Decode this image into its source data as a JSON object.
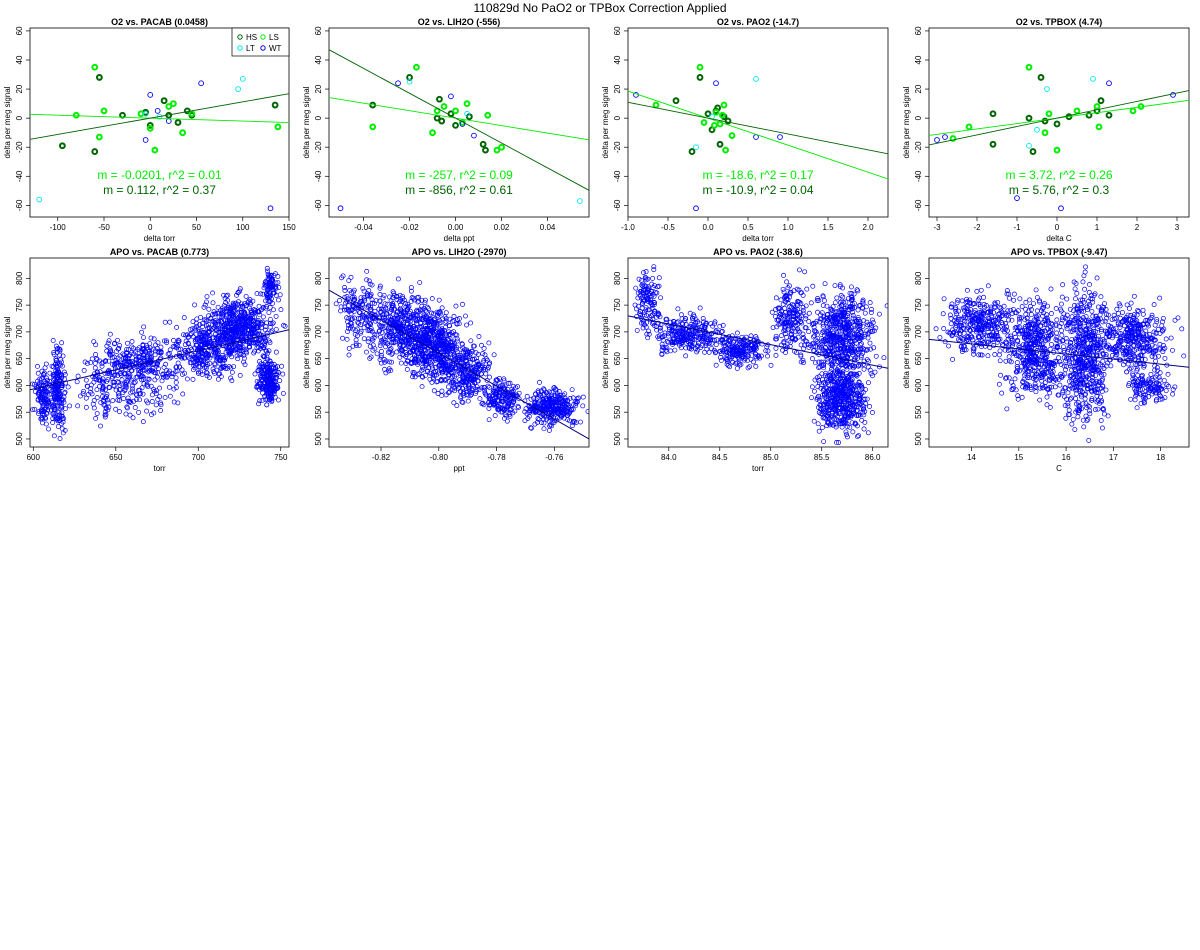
{
  "page_title": "110829d   No PaO2 or TPBox Correction Applied",
  "colors": {
    "HS": "#006400",
    "LS": "#00ee00",
    "LT": "#00e5ee",
    "WT": "#0000ff",
    "apo": "#0000ff",
    "axis": "#000000"
  },
  "chart_data": [
    {
      "type": "scatter",
      "title": "O2 vs. PACAB (0.0458)",
      "xlabel": "delta torr",
      "ylabel": "delta per meg signal",
      "xlim": [
        -130,
        150
      ],
      "ylim": [
        -68,
        62
      ],
      "xticks": [
        -100,
        -50,
        0,
        50,
        100,
        150
      ],
      "yticks": [
        -60,
        -40,
        -20,
        0,
        20,
        40,
        60
      ],
      "legend": {
        "position": "top-right",
        "entries": [
          "HS",
          "LS",
          "LT",
          "WT"
        ],
        "labels": [
          "HS",
          "LS",
          "LT",
          "WT"
        ]
      },
      "series": [
        {
          "name": "HS",
          "points": [
            [
              -95,
              -19
            ],
            [
              -60,
              -23
            ],
            [
              -55,
              28
            ],
            [
              -30,
              2
            ],
            [
              -5,
              4
            ],
            [
              0,
              -5
            ],
            [
              15,
              12
            ],
            [
              20,
              2
            ],
            [
              30,
              -3
            ],
            [
              40,
              5
            ],
            [
              45,
              2
            ],
            [
              135,
              9
            ]
          ]
        },
        {
          "name": "LS",
          "points": [
            [
              -80,
              2
            ],
            [
              -60,
              35
            ],
            [
              -55,
              -13
            ],
            [
              -50,
              5
            ],
            [
              -10,
              3
            ],
            [
              0,
              -7
            ],
            [
              5,
              -22
            ],
            [
              20,
              8
            ],
            [
              25,
              10
            ],
            [
              35,
              -10
            ],
            [
              45,
              3
            ],
            [
              138,
              -6
            ]
          ]
        },
        {
          "name": "LT",
          "points": [
            [
              -120,
              -56
            ],
            [
              95,
              20
            ],
            [
              100,
              27
            ],
            [
              -5,
              3
            ],
            [
              10,
              1
            ]
          ]
        },
        {
          "name": "WT",
          "points": [
            [
              0,
              16
            ],
            [
              -5,
              -15
            ],
            [
              55,
              24
            ],
            [
              130,
              -62
            ],
            [
              20,
              -2
            ],
            [
              8,
              5
            ]
          ]
        }
      ],
      "fits": [
        {
          "color": "LS",
          "m": -0.0201,
          "b": 0,
          "label": "m = -0.0201, r^2 = 0.01"
        },
        {
          "color": "HS",
          "m": 0.112,
          "b": 0,
          "label": "m = 0.112, r^2 = 0.37"
        }
      ]
    },
    {
      "type": "scatter",
      "title": "O2 vs. LIH2O (-556)",
      "xlabel": "delta ppt",
      "ylabel": "delta per meg signal",
      "xlim": [
        -0.055,
        0.058
      ],
      "ylim": [
        -68,
        62
      ],
      "xticks": [
        -0.04,
        -0.02,
        0.0,
        0.02,
        0.04
      ],
      "xtick_labels": [
        "-0.04",
        "-0.02",
        "0.00",
        "0.02",
        "0.04"
      ],
      "yticks": [
        -60,
        -40,
        -20,
        0,
        20,
        40,
        60
      ],
      "series": [
        {
          "name": "HS",
          "points": [
            [
              -0.036,
              9
            ],
            [
              -0.02,
              28
            ],
            [
              -0.007,
              13
            ],
            [
              -0.008,
              0
            ],
            [
              -0.002,
              3
            ],
            [
              0.0,
              -5
            ],
            [
              0.006,
              1
            ],
            [
              0.012,
              -18
            ],
            [
              0.013,
              -22
            ],
            [
              -0.006,
              -2
            ]
          ]
        },
        {
          "name": "LS",
          "points": [
            [
              -0.036,
              -6
            ],
            [
              -0.017,
              35
            ],
            [
              -0.01,
              -10
            ],
            [
              -0.008,
              5
            ],
            [
              -0.005,
              8
            ],
            [
              0.003,
              -3
            ],
            [
              0.005,
              10
            ],
            [
              0.014,
              2
            ],
            [
              0.018,
              -22
            ],
            [
              0.02,
              -20
            ],
            [
              0.0,
              5
            ]
          ]
        },
        {
          "name": "LT",
          "points": [
            [
              0.054,
              -57
            ],
            [
              -0.02,
              25
            ],
            [
              0.005,
              3
            ]
          ]
        },
        {
          "name": "WT",
          "points": [
            [
              -0.05,
              -62
            ],
            [
              -0.025,
              24
            ],
            [
              -0.002,
              15
            ],
            [
              0.008,
              -12
            ],
            [
              0.003,
              -4
            ]
          ]
        }
      ],
      "fits": [
        {
          "color": "LS",
          "m": -257,
          "b": 0,
          "label": "m = -257, r^2 = 0.09"
        },
        {
          "color": "HS",
          "m": -856,
          "b": 0,
          "label": "m = -856, r^2 = 0.61"
        }
      ]
    },
    {
      "type": "scatter",
      "title": "O2 vs. PAO2 (-14.7)",
      "xlabel": "delta torr",
      "ylabel": "delta per meg signal",
      "xlim": [
        -1.0,
        2.25
      ],
      "ylim": [
        -68,
        62
      ],
      "xticks": [
        -1.0,
        -0.5,
        0.0,
        0.5,
        1.0,
        1.5,
        2.0
      ],
      "xtick_labels": [
        "-1.0",
        "-0.5",
        "0.0",
        "0.5",
        "1.0",
        "1.5",
        "2.0"
      ],
      "yticks": [
        -60,
        -40,
        -20,
        0,
        20,
        40,
        60
      ],
      "series": [
        {
          "name": "HS",
          "points": [
            [
              -0.4,
              12
            ],
            [
              -0.2,
              -23
            ],
            [
              -0.1,
              28
            ],
            [
              0.0,
              3
            ],
            [
              0.1,
              5
            ],
            [
              0.15,
              -18
            ],
            [
              0.2,
              1
            ],
            [
              0.25,
              -2
            ],
            [
              0.05,
              -8
            ],
            [
              0.12,
              7
            ]
          ]
        },
        {
          "name": "LS",
          "points": [
            [
              -0.65,
              9
            ],
            [
              -0.1,
              35
            ],
            [
              -0.05,
              -3
            ],
            [
              0.08,
              -5
            ],
            [
              0.1,
              4
            ],
            [
              0.2,
              9
            ],
            [
              0.22,
              -22
            ],
            [
              0.3,
              -12
            ],
            [
              0.15,
              -4
            ],
            [
              0.18,
              2
            ]
          ]
        },
        {
          "name": "LT",
          "points": [
            [
              0.6,
              27
            ],
            [
              -0.15,
              -20
            ],
            [
              0.05,
              1
            ]
          ]
        },
        {
          "name": "WT",
          "points": [
            [
              -0.9,
              16
            ],
            [
              -0.15,
              -62
            ],
            [
              0.6,
              -13
            ],
            [
              0.9,
              -13
            ],
            [
              0.1,
              24
            ]
          ]
        }
      ],
      "fits": [
        {
          "color": "LS",
          "m": -18.6,
          "b": 0,
          "label": "m = -18.6, r^2 = 0.17"
        },
        {
          "color": "HS",
          "m": -10.9,
          "b": 0,
          "label": "m = -10.9, r^2 = 0.04"
        }
      ]
    },
    {
      "type": "scatter",
      "title": "O2 vs. TPBOX (4.74)",
      "xlabel": "delta C",
      "ylabel": "delta per meg signal",
      "xlim": [
        -3.2,
        3.3
      ],
      "ylim": [
        -68,
        62
      ],
      "xticks": [
        -3,
        -2,
        -1,
        0,
        1,
        2,
        3
      ],
      "yticks": [
        -60,
        -40,
        -20,
        0,
        20,
        40,
        60
      ],
      "series": [
        {
          "name": "HS",
          "points": [
            [
              -1.6,
              3
            ],
            [
              -1.6,
              -18
            ],
            [
              -0.6,
              -23
            ],
            [
              -0.4,
              28
            ],
            [
              -0.3,
              -2
            ],
            [
              0.0,
              -4
            ],
            [
              0.3,
              1
            ],
            [
              0.8,
              2
            ],
            [
              1.0,
              5
            ],
            [
              1.1,
              12
            ],
            [
              1.3,
              2
            ],
            [
              -0.7,
              0
            ]
          ]
        },
        {
          "name": "LS",
          "points": [
            [
              -2.6,
              -14
            ],
            [
              -2.2,
              -6
            ],
            [
              -0.7,
              35
            ],
            [
              -0.3,
              -10
            ],
            [
              0.0,
              -22
            ],
            [
              0.5,
              5
            ],
            [
              1.0,
              8
            ],
            [
              1.05,
              -6
            ],
            [
              1.9,
              5
            ],
            [
              2.1,
              8
            ],
            [
              -0.2,
              3
            ]
          ]
        },
        {
          "name": "LT",
          "points": [
            [
              -0.25,
              20
            ],
            [
              0.9,
              27
            ],
            [
              -0.7,
              -19
            ],
            [
              -0.5,
              -8
            ]
          ]
        },
        {
          "name": "WT",
          "points": [
            [
              -3.0,
              -15
            ],
            [
              -2.8,
              -13
            ],
            [
              -1.0,
              -55
            ],
            [
              0.1,
              -62
            ],
            [
              1.3,
              24
            ],
            [
              2.9,
              16
            ]
          ]
        }
      ],
      "fits": [
        {
          "color": "LS",
          "m": 3.72,
          "b": 0,
          "label": "m = 3.72, r^2 = 0.26"
        },
        {
          "color": "HS",
          "m": 5.76,
          "b": 0,
          "label": "m = 5.76, r^2 = 0.3"
        }
      ]
    },
    {
      "type": "scatter",
      "title": "APO vs. PACAB (0.773)",
      "xlabel": "torr",
      "ylabel": "delta per meg signal",
      "xlim": [
        598,
        755
      ],
      "ylim": [
        485,
        838
      ],
      "xticks": [
        600,
        650,
        700,
        750
      ],
      "yticks": [
        500,
        550,
        600,
        650,
        700,
        750,
        800
      ],
      "clusters": [
        {
          "x": [
            600,
            612
          ],
          "y": [
            520,
            640
          ],
          "n": 120
        },
        {
          "x": [
            610,
            620
          ],
          "y": [
            500,
            680
          ],
          "n": 180
        },
        {
          "x": [
            620,
            690
          ],
          "y": [
            520,
            680
          ],
          "n": 260
        },
        {
          "x": [
            630,
            700
          ],
          "y": [
            600,
            700
          ],
          "n": 200
        },
        {
          "x": [
            680,
            730
          ],
          "y": [
            600,
            740
          ],
          "n": 320
        },
        {
          "x": [
            700,
            750
          ],
          "y": [
            640,
            780
          ],
          "n": 520
        },
        {
          "x": [
            735,
            750
          ],
          "y": [
            560,
            660
          ],
          "n": 220
        },
        {
          "x": [
            738,
            750
          ],
          "y": [
            740,
            830
          ],
          "n": 80
        }
      ],
      "fit": {
        "x1": 598,
        "y1": 592,
        "x2": 755,
        "y2": 704
      }
    },
    {
      "type": "scatter",
      "title": "APO vs. LIH2O (-2970)",
      "xlabel": "ppt",
      "ylabel": "delta per meg signal",
      "xlim": [
        -0.838,
        -0.748
      ],
      "ylim": [
        485,
        838
      ],
      "xticks": [
        -0.82,
        -0.8,
        -0.78,
        -0.76
      ],
      "xtick_labels": [
        "-0.82",
        "-0.80",
        "-0.78",
        "-0.76"
      ],
      "yticks": [
        500,
        550,
        600,
        650,
        700,
        750,
        800
      ],
      "clusters": [
        {
          "x": [
            -0.836,
            -0.818
          ],
          "y": [
            660,
            820
          ],
          "n": 160
        },
        {
          "x": [
            -0.825,
            -0.8
          ],
          "y": [
            620,
            790
          ],
          "n": 420
        },
        {
          "x": [
            -0.812,
            -0.79
          ],
          "y": [
            590,
            760
          ],
          "n": 460
        },
        {
          "x": [
            -0.8,
            -0.78
          ],
          "y": [
            560,
            690
          ],
          "n": 260
        },
        {
          "x": [
            -0.785,
            -0.77
          ],
          "y": [
            530,
            620
          ],
          "n": 160
        },
        {
          "x": [
            -0.772,
            -0.75
          ],
          "y": [
            520,
            600
          ],
          "n": 300
        }
      ],
      "fit": {
        "x1": -0.838,
        "y1": 778,
        "x2": -0.748,
        "y2": 500
      }
    },
    {
      "type": "scatter",
      "title": "APO vs. PAO2 (-38.6)",
      "xlabel": "torr",
      "ylabel": "delta per meg signal",
      "xlim": [
        83.6,
        86.15
      ],
      "ylim": [
        485,
        838
      ],
      "xticks": [
        84.0,
        84.5,
        85.0,
        85.5,
        86.0
      ],
      "xtick_labels": [
        "84.0",
        "84.5",
        "85.0",
        "85.5",
        "86.0"
      ],
      "yticks": [
        500,
        550,
        600,
        650,
        700,
        750,
        800
      ],
      "clusters": [
        {
          "x": [
            83.65,
            83.95
          ],
          "y": [
            680,
            830
          ],
          "n": 120
        },
        {
          "x": [
            83.8,
            84.6
          ],
          "y": [
            650,
            740
          ],
          "n": 260
        },
        {
          "x": [
            84.4,
            85.0
          ],
          "y": [
            630,
            700
          ],
          "n": 200
        },
        {
          "x": [
            85.0,
            85.4
          ],
          "y": [
            650,
            800
          ],
          "n": 180
        },
        {
          "x": [
            85.3,
            86.1
          ],
          "y": [
            600,
            790
          ],
          "n": 560
        },
        {
          "x": [
            85.4,
            86.0
          ],
          "y": [
            500,
            650
          ],
          "n": 460
        }
      ],
      "fit": {
        "x1": 83.6,
        "y1": 730,
        "x2": 86.15,
        "y2": 632
      }
    },
    {
      "type": "scatter",
      "title": "APO vs. TPBOX (-9.47)",
      "xlabel": "C",
      "ylabel": "delta per meg signal",
      "xlim": [
        13.1,
        18.6
      ],
      "ylim": [
        485,
        838
      ],
      "xticks": [
        14,
        15,
        16,
        17,
        18
      ],
      "yticks": [
        500,
        550,
        600,
        650,
        700,
        750,
        800
      ],
      "clusters": [
        {
          "x": [
            13.3,
            15.0
          ],
          "y": [
            650,
            780
          ],
          "n": 320
        },
        {
          "x": [
            14.5,
            16.2
          ],
          "y": [
            560,
            780
          ],
          "n": 500
        },
        {
          "x": [
            15.8,
            17.0
          ],
          "y": [
            500,
            820
          ],
          "n": 520
        },
        {
          "x": [
            16.5,
            18.3
          ],
          "y": [
            620,
            760
          ],
          "n": 360
        },
        {
          "x": [
            17.2,
            18.3
          ],
          "y": [
            560,
            640
          ],
          "n": 120
        }
      ],
      "fit": {
        "x1": 13.1,
        "y1": 686,
        "x2": 18.6,
        "y2": 634
      }
    }
  ]
}
